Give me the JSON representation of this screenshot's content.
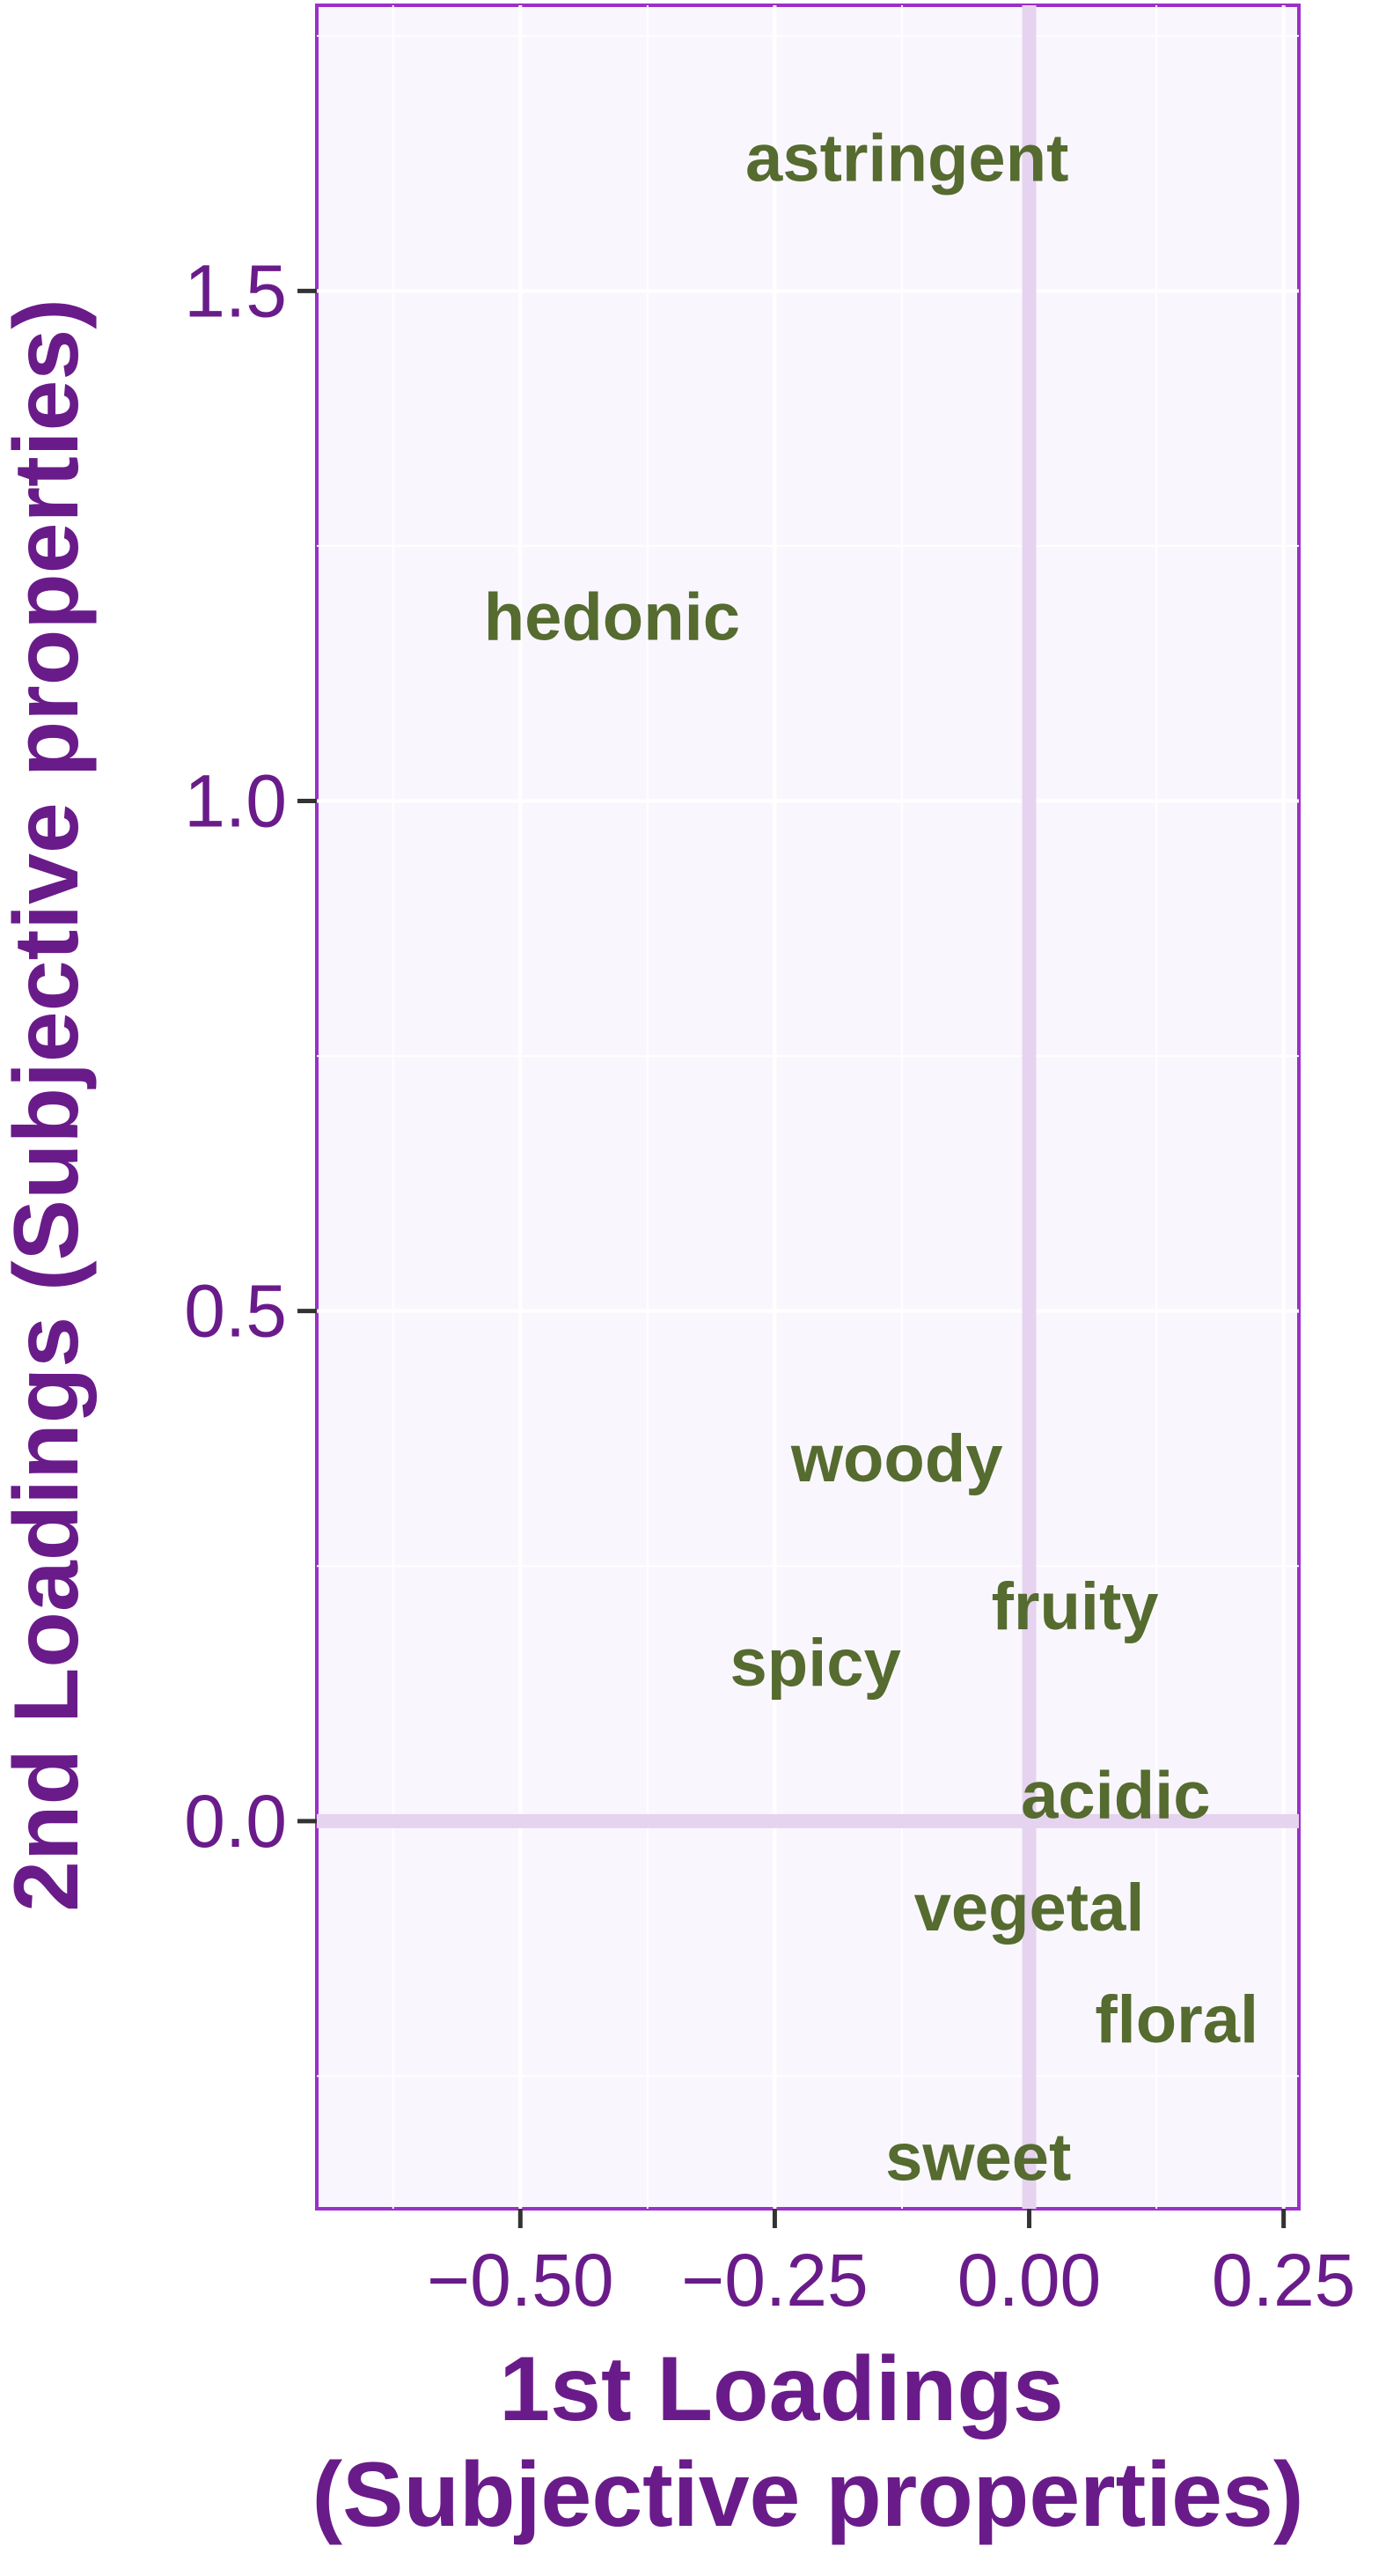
{
  "chart_data": {
    "type": "scatter",
    "title": "",
    "xlabel_lines": [
      "1st Loadings",
      "(Subjective properties)"
    ],
    "ylabel": "2nd Loadings (Subjective properties)",
    "xlim": [
      -0.7,
      0.265
    ],
    "ylim": [
      -0.38,
      1.78
    ],
    "x_ticks": [
      -0.5,
      -0.25,
      0.0,
      0.25
    ],
    "x_tick_labels": [
      "−0.50",
      "−0.25",
      "0.00",
      "0.25"
    ],
    "y_ticks": [
      0.0,
      0.5,
      1.0,
      1.5
    ],
    "y_tick_labels": [
      "0.0",
      "0.5",
      "1.0",
      "1.5"
    ],
    "reference_lines": {
      "x": 0,
      "y": 0
    },
    "grid": true,
    "points": [
      {
        "label": "astringent",
        "x": -0.12,
        "y": 1.63
      },
      {
        "label": "hedonic",
        "x": -0.41,
        "y": 1.18
      },
      {
        "label": "woody",
        "x": -0.13,
        "y": 0.355
      },
      {
        "label": "fruity",
        "x": 0.045,
        "y": 0.21
      },
      {
        "label": "spicy",
        "x": -0.21,
        "y": 0.155
      },
      {
        "label": "acidic",
        "x": 0.085,
        "y": 0.025
      },
      {
        "label": "vegetal",
        "x": 0.0,
        "y": -0.085
      },
      {
        "label": "floral",
        "x": 0.145,
        "y": -0.195
      },
      {
        "label": "sweet",
        "x": -0.05,
        "y": -0.33
      }
    ],
    "colors": {
      "panel_bg": "#f9f7fd",
      "panel_border": "#9b30c8",
      "grid": "#ffffff",
      "ref_line": "#e6d3ef",
      "axis_text": "#6a1b8a",
      "point_label": "#556b2f"
    }
  }
}
